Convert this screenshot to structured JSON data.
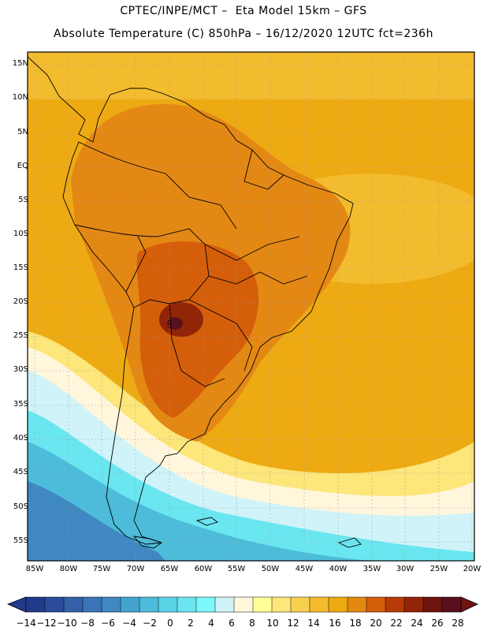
{
  "header": {
    "line1": "CPTEC/INPE/MCT –  Eta Model 15km – GFS",
    "line2": "Absolute Temperature (C) 850hPa – 16/12/2020 12UTC fct=236h"
  },
  "map": {
    "lat_labels": [
      "15N",
      "10N",
      "5N",
      "EQ",
      "5S",
      "10S",
      "15S",
      "20S",
      "25S",
      "30S",
      "35S",
      "40S",
      "45S",
      "50S",
      "55S"
    ],
    "lon_labels": [
      "85W",
      "80W",
      "75W",
      "70W",
      "65W",
      "60W",
      "55W",
      "50W",
      "45W",
      "40W",
      "35W",
      "30W",
      "25W",
      "20W"
    ]
  },
  "colorbar": {
    "ticks": [
      "−14",
      "−12",
      "−10",
      "−8",
      "−6",
      "−4",
      "−2",
      "0",
      "2",
      "4",
      "6",
      "8",
      "10",
      "12",
      "14",
      "16",
      "18",
      "20",
      "22",
      "24",
      "26",
      "28"
    ],
    "colors": [
      "#203a8c",
      "#2a4c9a",
      "#3360a8",
      "#3b74b6",
      "#3f88c2",
      "#44a2cf",
      "#4cbcda",
      "#5ad2e6",
      "#6ae6f0",
      "#7af8fa",
      "#cff3f8",
      "#fff6dc",
      "#ffff9a",
      "#fde67a",
      "#f8d050",
      "#f3bc2e",
      "#eeaa12",
      "#e48814",
      "#d45e0a",
      "#b63a06",
      "#922408",
      "#701410",
      "#58101c"
    ]
  }
}
